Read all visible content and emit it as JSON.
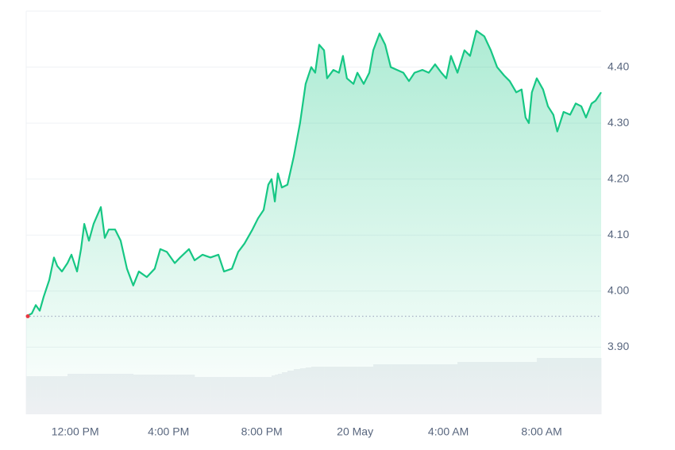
{
  "chart_data": {
    "type": "area",
    "x": [
      9.9,
      10.14,
      10.31,
      10.48,
      10.65,
      10.89,
      11.09,
      11.23,
      11.43,
      11.67,
      11.84,
      12.08,
      12.25,
      12.39,
      12.59,
      12.79,
      13.1,
      13.27,
      13.44,
      13.71,
      13.95,
      14.22,
      14.49,
      14.73,
      15.07,
      15.41,
      15.65,
      15.93,
      16.27,
      16.5,
      16.88,
      17.12,
      17.46,
      17.8,
      18.14,
      18.38,
      18.72,
      18.99,
      19.26,
      19.6,
      19.84,
      20.08,
      20.28,
      20.42,
      20.56,
      20.69,
      20.86,
      21.1,
      21.37,
      21.64,
      21.88,
      22.12,
      22.29,
      22.46,
      22.67,
      22.8,
      23.07,
      23.31,
      23.48,
      23.65,
      23.93,
      24.1,
      24.37,
      24.61,
      24.78,
      25.05,
      25.29,
      25.53,
      25.8,
      26.07,
      26.31,
      26.55,
      26.89,
      27.16,
      27.43,
      27.7,
      27.91,
      28.11,
      28.39,
      28.69,
      28.93,
      29.2,
      29.54,
      29.82,
      30.09,
      30.39,
      30.63,
      30.91,
      31.14,
      31.31,
      31.45,
      31.58,
      31.79,
      32.06,
      32.27,
      32.5,
      32.67,
      32.94,
      33.22,
      33.46,
      33.7,
      33.9,
      34.14,
      34.31,
      34.55
    ],
    "series": [
      {
        "color": "#16c784",
        "values": [
          3.955,
          3.96,
          3.975,
          3.965,
          3.99,
          4.02,
          4.06,
          4.045,
          4.035,
          4.05,
          4.065,
          4.035,
          4.075,
          4.12,
          4.09,
          4.12,
          4.15,
          4.095,
          4.11,
          4.11,
          4.09,
          4.04,
          4.01,
          4.035,
          4.025,
          4.04,
          4.075,
          4.07,
          4.05,
          4.06,
          4.075,
          4.055,
          4.065,
          4.06,
          4.065,
          4.035,
          4.04,
          4.07,
          4.085,
          4.11,
          4.13,
          4.145,
          4.19,
          4.2,
          4.16,
          4.21,
          4.185,
          4.19,
          4.24,
          4.3,
          4.37,
          4.4,
          4.39,
          4.44,
          4.43,
          4.38,
          4.395,
          4.39,
          4.42,
          4.38,
          4.37,
          4.39,
          4.37,
          4.39,
          4.43,
          4.46,
          4.44,
          4.4,
          4.395,
          4.39,
          4.375,
          4.39,
          4.395,
          4.39,
          4.405,
          4.39,
          4.38,
          4.42,
          4.39,
          4.43,
          4.42,
          4.465,
          4.455,
          4.43,
          4.4,
          4.385,
          4.375,
          4.355,
          4.36,
          4.31,
          4.3,
          4.355,
          4.38,
          4.36,
          4.33,
          4.315,
          4.285,
          4.32,
          4.315,
          4.335,
          4.33,
          4.31,
          4.335,
          4.34,
          4.355
        ]
      }
    ],
    "volume": {
      "color": "#eef0f3",
      "vlim": [
        0,
        80
      ],
      "values": [
        48,
        48,
        48,
        48,
        48,
        48,
        48,
        48,
        48,
        51,
        51,
        51,
        51,
        51,
        51,
        51,
        51,
        51,
        51,
        51,
        51,
        51,
        50,
        50,
        50,
        50,
        50,
        50,
        50,
        50,
        50,
        47,
        47,
        47,
        47,
        47,
        47,
        47,
        47,
        47,
        47,
        47,
        47,
        49,
        50,
        51,
        53,
        55,
        57,
        58,
        59,
        60,
        60,
        60,
        60,
        60,
        60,
        60,
        60,
        60,
        60,
        60,
        60,
        60,
        63,
        63,
        63,
        63,
        63,
        63,
        63,
        63,
        63,
        63,
        63,
        63,
        63,
        63,
        66,
        66,
        66,
        66,
        66,
        66,
        66,
        66,
        66,
        66,
        66,
        66,
        66,
        66,
        71,
        71,
        71,
        71,
        71,
        71,
        71,
        71,
        71,
        71,
        71,
        71,
        71
      ]
    },
    "baseline": 3.955,
    "xlim": [
      9.9,
      34.55
    ],
    "xticks": [
      {
        "value": 12,
        "label": "12:00 PM"
      },
      {
        "value": 16,
        "label": "4:00 PM"
      },
      {
        "value": 20,
        "label": "8:00 PM"
      },
      {
        "value": 24,
        "label": "20 May"
      },
      {
        "value": 28,
        "label": "4:00 AM"
      },
      {
        "value": 32,
        "label": "8:00 AM"
      }
    ],
    "ylim": [
      3.78,
      4.5
    ],
    "yticks": [
      {
        "value": 3.9,
        "label": "3.90"
      },
      {
        "value": 4.0,
        "label": "4.00"
      },
      {
        "value": 4.1,
        "label": "4.10"
      },
      {
        "value": 4.2,
        "label": "4.20"
      },
      {
        "value": 4.3,
        "label": "4.30"
      },
      {
        "value": 4.4,
        "label": "4.40"
      },
      4.5
    ],
    "grid": true
  }
}
